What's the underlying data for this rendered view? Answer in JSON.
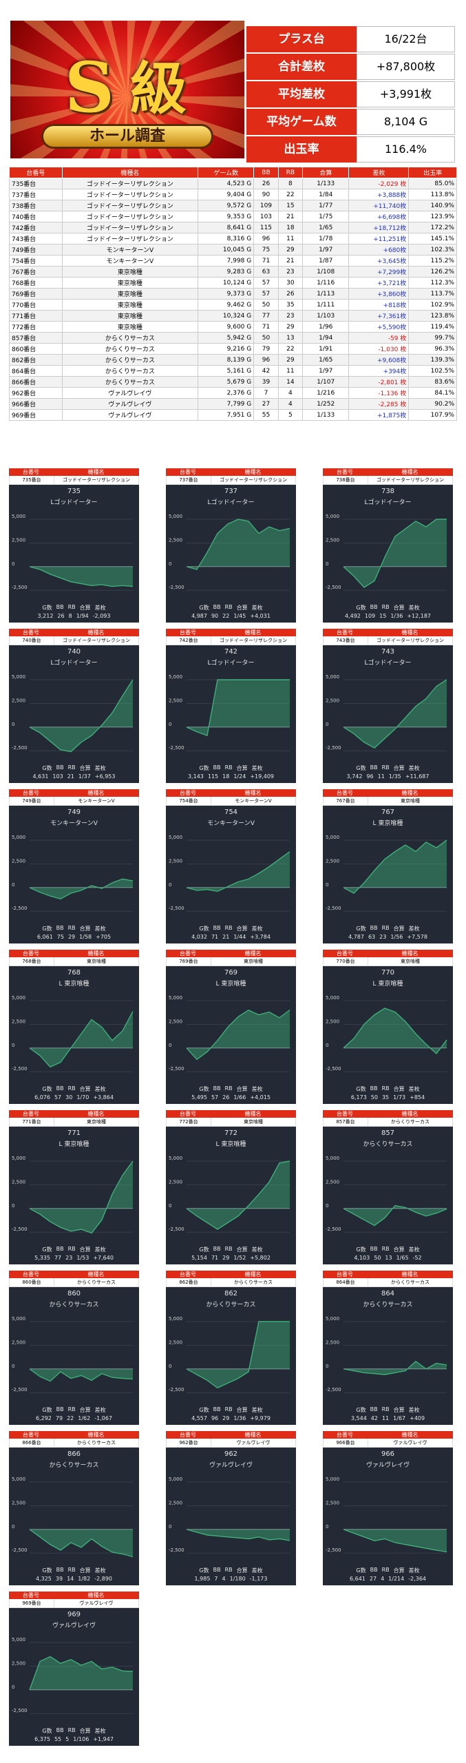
{
  "banner": {
    "big_letter": "S",
    "kanji": "級",
    "ribbon": "ホール調査"
  },
  "summary": [
    {
      "label": "プラス台",
      "value": "16/22台"
    },
    {
      "label": "合計差枚",
      "value": "+87,800枚"
    },
    {
      "label": "平均差枚",
      "value": "+3,991枚"
    },
    {
      "label": "平均ゲーム数",
      "value": "8,104 G"
    },
    {
      "label": "出玉率",
      "value": "116.4%"
    }
  ],
  "table": {
    "headers": [
      "台番号",
      "機種名",
      "ゲーム数",
      "BB",
      "RB",
      "合算",
      "差枚",
      "出玉率"
    ],
    "rows": [
      [
        "735番台",
        "ゴッドイーターリザレクション",
        "4,523 G",
        "26",
        "8",
        "1/133",
        "-2,029 枚",
        "85.0%"
      ],
      [
        "737番台",
        "ゴッドイーターリザレクション",
        "9,404 G",
        "90",
        "22",
        "1/84",
        "+3,888枚",
        "113.8%"
      ],
      [
        "738番台",
        "ゴッドイーターリザレクション",
        "9,572 G",
        "109",
        "15",
        "1/77",
        "+11,740枚",
        "140.9%"
      ],
      [
        "740番台",
        "ゴッドイーターリザレクション",
        "9,353 G",
        "103",
        "21",
        "1/75",
        "+6,698枚",
        "123.9%"
      ],
      [
        "742番台",
        "ゴッドイーターリザレクション",
        "8,641 G",
        "115",
        "18",
        "1/65",
        "+18,712枚",
        "172.2%"
      ],
      [
        "743番台",
        "ゴッドイーターリザレクション",
        "8,316 G",
        "96",
        "11",
        "1/78",
        "+11,251枚",
        "145.1%"
      ],
      [
        "749番台",
        "モンキーターンV",
        "10,045 G",
        "75",
        "29",
        "1/97",
        "+680枚",
        "102.3%"
      ],
      [
        "754番台",
        "モンキーターンV",
        "7,998 G",
        "71",
        "21",
        "1/87",
        "+3,645枚",
        "115.2%"
      ],
      [
        "767番台",
        "東京喰種",
        "9,283 G",
        "63",
        "23",
        "1/108",
        "+7,299枚",
        "126.2%"
      ],
      [
        "768番台",
        "東京喰種",
        "10,124 G",
        "57",
        "30",
        "1/116",
        "+3,721枚",
        "112.3%"
      ],
      [
        "769番台",
        "東京喰種",
        "9,373 G",
        "57",
        "26",
        "1/113",
        "+3,860枚",
        "113.7%"
      ],
      [
        "770番台",
        "東京喰種",
        "9,462 G",
        "50",
        "35",
        "1/111",
        "+818枚",
        "102.9%"
      ],
      [
        "771番台",
        "東京喰種",
        "10,324 G",
        "77",
        "23",
        "1/103",
        "+7,361枚",
        "123.8%"
      ],
      [
        "772番台",
        "東京喰種",
        "9,600 G",
        "71",
        "29",
        "1/96",
        "+5,590枚",
        "119.4%"
      ],
      [
        "857番台",
        "からくりサーカス",
        "5,942 G",
        "50",
        "13",
        "1/94",
        "-59 枚",
        "99.7%"
      ],
      [
        "860番台",
        "からくりサーカス",
        "9,216 G",
        "79",
        "22",
        "1/91",
        "-1,030 枚",
        "96.3%"
      ],
      [
        "862番台",
        "からくりサーカス",
        "8,139 G",
        "96",
        "29",
        "1/65",
        "+9,608枚",
        "139.3%"
      ],
      [
        "864番台",
        "からくりサーカス",
        "5,161 G",
        "42",
        "11",
        "1/97",
        "+394枚",
        "102.5%"
      ],
      [
        "866番台",
        "からくりサーカス",
        "5,679 G",
        "39",
        "14",
        "1/107",
        "-2,801 枚",
        "83.6%"
      ],
      [
        "962番台",
        "ヴァルヴレイヴ",
        "2,376 G",
        "7",
        "4",
        "1/216",
        "-1,136 枚",
        "84.1%"
      ],
      [
        "966番台",
        "ヴァルヴレイヴ",
        "7,799 G",
        "27",
        "4",
        "1/252",
        "-2,285 枚",
        "90.2%"
      ],
      [
        "969番台",
        "ヴァルヴレイヴ",
        "7,951 G",
        "55",
        "5",
        "1/133",
        "+1,875枚",
        "107.9%"
      ]
    ]
  },
  "card_labels": {
    "head1": "台番号",
    "head2": "機種名",
    "g": "G数",
    "bb": "BB",
    "rb": "RB",
    "total": "合算",
    "diff": "差枚"
  },
  "axis_ticks": [
    "5,000",
    "2,500",
    "0",
    "-2,500"
  ],
  "axis_values": [
    5000,
    2500,
    0,
    -2500
  ],
  "cards": [
    {
      "no": "735",
      "name": "ゴッドイーターリザレクション",
      "gname": "Lゴッドイーター",
      "g": "3,212",
      "bb": "26",
      "rb": "8",
      "tot": "1/94",
      "diff": "-2,093",
      "pts": [
        0,
        -300,
        -800,
        -1200,
        -1600,
        -1800,
        -2000,
        -1900,
        -2100,
        -2000,
        -2093
      ]
    },
    {
      "no": "737",
      "name": "ゴッドイーターリザレクション",
      "gname": "Lゴッドイーター",
      "g": "4,987",
      "bb": "90",
      "rb": "22",
      "tot": "1/45",
      "diff": "+4,031",
      "pts": [
        0,
        -300,
        1500,
        3500,
        4500,
        5200,
        4800,
        3500,
        4200,
        3800,
        4031
      ]
    },
    {
      "no": "738",
      "name": "ゴッドイーターリザレクション",
      "gname": "Lゴッドイーター",
      "g": "4,492",
      "bb": "109",
      "rb": "15",
      "tot": "1/36",
      "diff": "+12,187",
      "pts": [
        0,
        -1000,
        -2200,
        -1500,
        1000,
        3200,
        4000,
        4800,
        4200,
        5000,
        5000
      ]
    },
    {
      "no": "740",
      "name": "ゴッドイーターリザレクション",
      "gname": "Lゴッドイーター",
      "g": "4,631",
      "bb": "103",
      "rb": "21",
      "tot": "1/37",
      "diff": "+6,953",
      "pts": [
        0,
        -600,
        -1500,
        -2400,
        -2600,
        -1600,
        -900,
        200,
        1500,
        3300,
        5000
      ]
    },
    {
      "no": "742",
      "name": "ゴッドイーターリザレクション",
      "gname": "Lゴッドイーター",
      "g": "3,143",
      "bb": "115",
      "rb": "18",
      "tot": "1/24",
      "diff": "+19,409",
      "pts": [
        0,
        -500,
        -900,
        5000,
        5000,
        5000,
        5000,
        5000,
        5000,
        5000,
        5000
      ]
    },
    {
      "no": "743",
      "name": "ゴッドイーターリザレクション",
      "gname": "Lゴッドイーター",
      "g": "3,742",
      "bb": "96",
      "rb": "11",
      "tot": "1/35",
      "diff": "+11,687",
      "pts": [
        0,
        -700,
        -1600,
        -2200,
        -1200,
        -200,
        1000,
        2200,
        3000,
        4300,
        5000
      ]
    },
    {
      "no": "749",
      "name": "モンキーターンV",
      "gname": "モンキーターンV",
      "g": "6,061",
      "bb": "75",
      "rb": "29",
      "tot": "1/58",
      "diff": "+705",
      "pts": [
        0,
        -500,
        -900,
        -1200,
        -600,
        -300,
        200,
        -100,
        500,
        900,
        705
      ]
    },
    {
      "no": "754",
      "name": "モンキーターンV",
      "gname": "モンキーターンV",
      "g": "4,032",
      "bb": "71",
      "rb": "21",
      "tot": "1/44",
      "diff": "+3,784",
      "pts": [
        0,
        -300,
        -200,
        -400,
        100,
        600,
        900,
        1500,
        2200,
        3000,
        3784
      ]
    },
    {
      "no": "767",
      "name": "東京喰種",
      "gname": "L 東京喰種",
      "g": "4,787",
      "bb": "63",
      "rb": "23",
      "tot": "1/56",
      "diff": "+7,578",
      "pts": [
        0,
        -600,
        500,
        1800,
        3000,
        3800,
        4500,
        3800,
        4800,
        4200,
        5000
      ]
    },
    {
      "no": "768",
      "name": "東京喰種",
      "gname": "L 東京喰種",
      "g": "6,076",
      "bb": "57",
      "rb": "30",
      "tot": "1/70",
      "diff": "+3,864",
      "pts": [
        0,
        -800,
        -2000,
        -1500,
        0,
        1500,
        3000,
        2200,
        800,
        1800,
        3864
      ]
    },
    {
      "no": "769",
      "name": "東京喰種",
      "gname": "L 東京喰種",
      "g": "5,495",
      "bb": "57",
      "rb": "26",
      "tot": "1/66",
      "diff": "+4,015",
      "pts": [
        0,
        -1200,
        -400,
        800,
        2200,
        3300,
        4000,
        3500,
        3800,
        3200,
        4015
      ]
    },
    {
      "no": "770",
      "name": "東京喰種",
      "gname": "L 東京喰種",
      "g": "6,173",
      "bb": "50",
      "rb": "35",
      "tot": "1/73",
      "diff": "+854",
      "pts": [
        0,
        1000,
        2500,
        3500,
        4200,
        3800,
        2800,
        1500,
        400,
        -600,
        854
      ]
    },
    {
      "no": "771",
      "name": "東京喰種",
      "gname": "L 東京喰種",
      "g": "5,335",
      "bb": "77",
      "rb": "23",
      "tot": "1/53",
      "diff": "+7,640",
      "pts": [
        0,
        -600,
        -1400,
        -2000,
        -2400,
        -2200,
        -2600,
        -1200,
        1500,
        3500,
        5000
      ]
    },
    {
      "no": "772",
      "name": "東京喰種",
      "gname": "L 東京喰種",
      "g": "5,154",
      "bb": "71",
      "rb": "29",
      "tot": "1/52",
      "diff": "+5,802",
      "pts": [
        0,
        -800,
        -1500,
        -2200,
        -1500,
        -800,
        300,
        1500,
        2800,
        4800,
        5000
      ]
    },
    {
      "no": "857",
      "name": "からくりサーカス",
      "gname": "からくりサーカス",
      "g": "4,103",
      "bb": "50",
      "rb": "13",
      "tot": "1/65",
      "diff": "-52",
      "pts": [
        0,
        -600,
        -1200,
        -1800,
        -1000,
        300,
        100,
        -400,
        -800,
        -500,
        -52
      ]
    },
    {
      "no": "860",
      "name": "からくりサーカス",
      "gname": "からくりサーカス",
      "g": "6,292",
      "bb": "79",
      "rb": "22",
      "tot": "1/62",
      "diff": "-1,067",
      "pts": [
        0,
        -800,
        -1300,
        -300,
        -1000,
        -700,
        -1200,
        -500,
        -900,
        -1000,
        -1067
      ]
    },
    {
      "no": "862",
      "name": "からくりサーカス",
      "gname": "からくりサーカス",
      "g": "4,557",
      "bb": "96",
      "rb": "29",
      "tot": "1/36",
      "diff": "+9,979",
      "pts": [
        0,
        -600,
        -1200,
        -2000,
        -1500,
        -1000,
        -300,
        5000,
        5000,
        5000,
        5000
      ]
    },
    {
      "no": "864",
      "name": "からくりサーカス",
      "gname": "からくりサーカス",
      "g": "3,544",
      "bb": "42",
      "rb": "11",
      "tot": "1/67",
      "diff": "+409",
      "pts": [
        0,
        -200,
        -400,
        -500,
        -600,
        -400,
        -200,
        800,
        0,
        600,
        409
      ]
    },
    {
      "no": "866",
      "name": "からくりサーカス",
      "gname": "からくりサーカス",
      "g": "4,325",
      "bb": "39",
      "rb": "14",
      "tot": "1/82",
      "diff": "-2,890",
      "pts": [
        0,
        -800,
        -1600,
        -2200,
        -1400,
        -1900,
        -1000,
        -1800,
        -2400,
        -2600,
        -2890
      ]
    },
    {
      "no": "962",
      "name": "ヴァルヴレイヴ",
      "gname": "ヴァルヴレイヴ",
      "g": "1,985",
      "bb": "7",
      "rb": "4",
      "tot": "1/180",
      "diff": "-1,173",
      "pts": [
        0,
        -300,
        -600,
        -700,
        -800,
        -900,
        -1000,
        -800,
        -1100,
        -1000,
        -1173
      ]
    },
    {
      "no": "966",
      "name": "ヴァルヴレイヴ",
      "gname": "ヴァルヴレイヴ",
      "g": "6,641",
      "bb": "27",
      "rb": "4",
      "tot": "1/214",
      "diff": "-2,364",
      "pts": [
        0,
        -400,
        -800,
        -1200,
        -1000,
        -1400,
        -1600,
        -1800,
        -2000,
        -2200,
        -2364
      ]
    },
    {
      "no": "969",
      "name": "ヴァルヴレイヴ",
      "gname": "ヴァルヴレイヴ",
      "g": "6,375",
      "bb": "55",
      "rb": "5",
      "tot": "1/106",
      "diff": "+1,947",
      "pts": [
        0,
        3000,
        3500,
        2800,
        3200,
        2600,
        3000,
        2200,
        2400,
        2000,
        1947
      ]
    }
  ],
  "colors": {
    "accent": "#e02b16",
    "positive": "#1f31c9",
    "negative": "#e01010",
    "graph_bg": "#232a35",
    "graph_line": "#3fae78"
  }
}
